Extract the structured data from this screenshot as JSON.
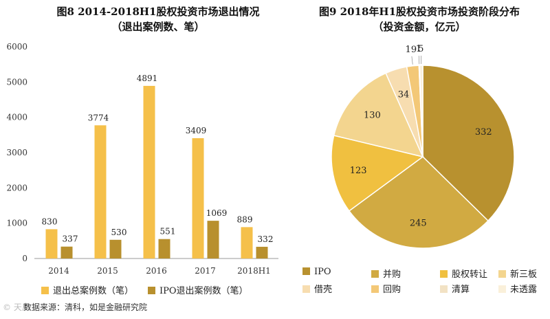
{
  "fig8": {
    "title_line1": "图8  2014-2018H1股权投资市场退出情况",
    "title_line2": "（退出案例数、笔）",
    "legend": [
      "退出总案例数（笔）",
      "IPO退出案例数（笔）"
    ]
  },
  "fig9": {
    "title_line1": "图9  2018年H1股权投资市场投资阶段分布",
    "title_line2": "（投资金额，亿元）"
  },
  "source": "数据来源：清科，如是金融研究院",
  "watermark": "© 天风",
  "chart_data": [
    {
      "type": "bar",
      "title": "图8  2014-2018H1股权投资市场退出情况（退出案例数、笔）",
      "categories": [
        "2014",
        "2015",
        "2016",
        "2017",
        "2018H1"
      ],
      "series": [
        {
          "name": "退出总案例数（笔）",
          "color": "#f5c04a",
          "values": [
            830,
            3774,
            4891,
            3409,
            889
          ]
        },
        {
          "name": "IPO退出案例数（笔）",
          "color": "#b8902e",
          "values": [
            337,
            530,
            551,
            1069,
            332
          ]
        }
      ],
      "yticks": [
        0,
        1000,
        2000,
        3000,
        4000,
        5000,
        6000
      ],
      "ylim": [
        0,
        6000
      ]
    },
    {
      "type": "pie",
      "title": "图9  2018年H1股权投资市场投资阶段分布（投资金额，亿元）",
      "labels": [
        "IPO",
        "并购",
        "股权转让",
        "新三板",
        "借壳",
        "回购",
        "清算",
        "未透露"
      ],
      "values": [
        332,
        245,
        123,
        130,
        34,
        19,
        1,
        5
      ],
      "colors": [
        "#b8912f",
        "#d1aa42",
        "#f0c040",
        "#f3d58f",
        "#f7ddb0",
        "#f3c877",
        "#f2e2c4",
        "#faf0da"
      ]
    }
  ]
}
